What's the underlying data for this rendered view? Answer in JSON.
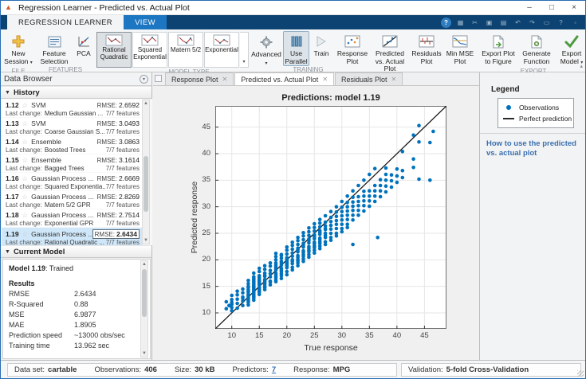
{
  "window": {
    "title": "Regression Learner - Predicted vs. Actual Plot",
    "controls": {
      "minimize": "–",
      "maximize": "□",
      "close": "×"
    }
  },
  "ribbon": {
    "tabs": [
      {
        "label": "REGRESSION LEARNER"
      },
      {
        "label": "VIEW"
      }
    ],
    "qab": [
      {
        "name": "help-circle-icon",
        "glyph": "?"
      },
      {
        "name": "save-icon",
        "glyph": "▦"
      },
      {
        "name": "cut-icon",
        "glyph": "✂"
      },
      {
        "name": "copy-icon",
        "glyph": "▣"
      },
      {
        "name": "paste-icon",
        "glyph": "▤"
      },
      {
        "name": "undo-icon",
        "glyph": "↶"
      },
      {
        "name": "redo-icon",
        "glyph": "↷"
      },
      {
        "name": "layout-icon",
        "glyph": "▭"
      },
      {
        "name": "help-icon",
        "glyph": "?"
      },
      {
        "name": "dock-icon",
        "glyph": "◦"
      }
    ],
    "file": {
      "label": "FILE",
      "new_session": "New Session"
    },
    "features": {
      "label": "FEATURES",
      "feature_selection": "Feature Selection",
      "pca": "PCA"
    },
    "model_type": {
      "label": "MODEL TYPE",
      "items": [
        "Rational Quadratic",
        "Squared Exponential",
        "Matern 5/2",
        "Exponential"
      ],
      "selected": "Rational Quadratic",
      "advanced": "Advanced"
    },
    "training": {
      "label": "TRAINING",
      "use_parallel": "Use Parallel",
      "train": "Train"
    },
    "plots": {
      "label": "PLOTS",
      "items": [
        "Response Plot",
        "Predicted vs. Actual Plot",
        "Residuals Plot",
        "Min MSE Plot"
      ]
    },
    "export": {
      "label": "EXPORT",
      "items": [
        "Export Plot to Figure",
        "Generate Function",
        "Export Model"
      ]
    }
  },
  "data_browser": {
    "title": "Data Browser",
    "history": {
      "label": "History",
      "rmse_label": "RMSE:",
      "last_change_label": "Last change:",
      "rows": [
        {
          "id": "1.12",
          "type": "SVM",
          "rmse": "2.6592",
          "last_change": "Medium Gaussian ...",
          "features": "7/7 features",
          "selected": false
        },
        {
          "id": "1.13",
          "type": "SVM",
          "rmse": "3.0493",
          "last_change": "Coarse Gaussian S...",
          "features": "7/7 features",
          "selected": false
        },
        {
          "id": "1.14",
          "type": "Ensemble",
          "rmse": "3.0863",
          "last_change": "Boosted Trees",
          "features": "7/7 features",
          "selected": false
        },
        {
          "id": "1.15",
          "type": "Ensemble",
          "rmse": "3.1614",
          "last_change": "Bagged Trees",
          "features": "7/7 features",
          "selected": false
        },
        {
          "id": "1.16",
          "type": "Gaussian Process ...",
          "rmse": "2.6669",
          "last_change": "Squared Exponentia...",
          "features": "7/7 features",
          "selected": false
        },
        {
          "id": "1.17",
          "type": "Gaussian Process ...",
          "rmse": "2.8269",
          "last_change": "Matern 5/2 GPR",
          "features": "7/7 features",
          "selected": false
        },
        {
          "id": "1.18",
          "type": "Gaussian Process ...",
          "rmse": "2.7514",
          "last_change": "Exponential GPR",
          "features": "7/7 features",
          "selected": false
        },
        {
          "id": "1.19",
          "type": "Gaussian Process ...",
          "rmse": "2.6434",
          "last_change": "Rational Quadratic ...",
          "features": "7/7 features",
          "selected": true
        }
      ]
    },
    "current_model": {
      "label": "Current Model",
      "model_name": "Model 1.19",
      "model_status": ": Trained",
      "results_label": "Results",
      "stats": [
        [
          "RMSE",
          "2.6434"
        ],
        [
          "R-Squared",
          "0.88"
        ],
        [
          "MSE",
          "6.9877"
        ],
        [
          "MAE",
          "1.8905"
        ],
        [
          "Prediction speed",
          "~13000 obs/sec"
        ],
        [
          "Training time",
          "13.962 sec"
        ]
      ]
    }
  },
  "doc_tabs": [
    {
      "label": "Response Plot",
      "active": false
    },
    {
      "label": "Predicted vs. Actual Plot",
      "active": true
    },
    {
      "label": "Residuals Plot",
      "active": false
    }
  ],
  "chart_data": {
    "type": "scatter",
    "title": "Predictions: model 1.19",
    "xlabel": "True response",
    "ylabel": "Predicted response",
    "xlim": [
      7,
      49
    ],
    "ylim": [
      7,
      49
    ],
    "ticks": [
      10,
      15,
      20,
      25,
      30,
      35,
      40,
      45
    ],
    "grid": true,
    "legend_position": "right-panel",
    "series": [
      {
        "name": "Observations",
        "marker": "dot",
        "marker_color": "#0072BD",
        "columns": [
          [
            9,
            [
              12.1,
              10.8
            ]
          ],
          [
            9.5,
            [
              11.4
            ]
          ],
          [
            10,
            [
              10.4,
              11.6,
              12.5,
              13.3,
              11.0,
              12.0
            ]
          ],
          [
            11,
            [
              11.8,
              12.6,
              13.4,
              10.9,
              14.1
            ]
          ],
          [
            12,
            [
              12.2,
              13.0,
              13.8,
              11.4,
              14.5,
              12.7
            ]
          ],
          [
            13,
            [
              12.0,
              12.6,
              13.2,
              13.9,
              14.4,
              15.0,
              11.5,
              12.9,
              13.5,
              14.8,
              15.5,
              16.1,
              12.3,
              14.1
            ]
          ],
          [
            14,
            [
              12.8,
              13.3,
              13.9,
              14.4,
              15.0,
              15.6,
              16.2,
              12.4,
              13.6,
              14.8,
              15.3,
              16.8,
              17.5,
              13.1,
              14.1,
              15.9,
              16.5,
              14.6
            ]
          ],
          [
            15,
            [
              13.5,
              14.2,
              14.8,
              15.3,
              15.9,
              16.4,
              17.0,
              13.9,
              15.6,
              16.7,
              17.8,
              18.4,
              14.5,
              16.1
            ]
          ],
          [
            16,
            [
              14.4,
              15.0,
              15.7,
              16.3,
              16.9,
              17.5,
              14.8,
              16.0,
              17.1,
              18.2,
              15.4,
              18.9
            ]
          ],
          [
            17,
            [
              15.3,
              16.0,
              16.8,
              17.4,
              18.0,
              18.8,
              15.8,
              19.4
            ]
          ],
          [
            18,
            [
              16.2,
              16.9,
              17.5,
              18.1,
              18.7,
              19.4,
              20.0,
              15.9,
              17.2,
              18.4,
              19.0,
              20.6,
              16.6,
              21.2
            ]
          ],
          [
            19,
            [
              17.0,
              17.8,
              18.4,
              19.0,
              19.7,
              20.3,
              16.5,
              18.1,
              19.4,
              21.0,
              17.4,
              20.8
            ]
          ],
          [
            20,
            [
              17.8,
              18.5,
              19.2,
              19.8,
              20.4,
              21.1,
              17.2,
              18.9,
              20.1,
              21.8,
              22.4,
              19.5
            ]
          ],
          [
            21,
            [
              18.6,
              19.3,
              20.0,
              20.7,
              21.3,
              22.0,
              18.1,
              19.7,
              22.7,
              23.3
            ]
          ],
          [
            22,
            [
              19.4,
              20.1,
              20.8,
              21.5,
              22.2,
              22.9,
              18.9,
              20.5,
              21.9,
              23.6,
              24.2,
              19.8
            ]
          ],
          [
            23,
            [
              20.2,
              21.0,
              21.7,
              22.4,
              23.1,
              23.8,
              19.7,
              21.4,
              22.8,
              24.5,
              25.1,
              20.7
            ]
          ],
          [
            24,
            [
              21.0,
              21.8,
              22.5,
              23.2,
              23.9,
              24.6,
              20.5,
              22.2,
              23.6,
              25.3,
              26.0,
              21.5
            ]
          ],
          [
            25,
            [
              21.8,
              22.6,
              23.3,
              24.0,
              24.7,
              25.4,
              21.3,
              23.0,
              24.4,
              26.1,
              26.8,
              22.3
            ]
          ],
          [
            26,
            [
              22.6,
              23.4,
              24.1,
              24.8,
              25.5,
              26.2,
              22.1,
              23.8,
              25.2,
              26.9,
              27.6,
              23.1
            ]
          ],
          [
            27,
            [
              23.4,
              24.2,
              25.0,
              25.7,
              26.4,
              27.1,
              22.9,
              24.6,
              28.3,
              25.9
            ]
          ],
          [
            28,
            [
              24.2,
              25.0,
              25.8,
              26.5,
              27.2,
              28.0,
              23.7,
              29.1
            ]
          ],
          [
            29,
            [
              25.0,
              25.9,
              26.7,
              27.4,
              28.2,
              29.0,
              24.5,
              30.0
            ]
          ],
          [
            30,
            [
              25.9,
              26.7,
              27.5,
              28.3,
              29.1,
              29.9,
              25.3,
              31.0
            ]
          ],
          [
            31,
            [
              26.7,
              27.6,
              28.4,
              29.2,
              30.0,
              30.8,
              26.1,
              32.0
            ]
          ],
          [
            32,
            [
              27.5,
              28.4,
              29.3,
              30.1,
              30.9,
              31.8,
              22.9,
              33.0
            ]
          ],
          [
            33,
            [
              28.4,
              29.3,
              30.2,
              31.0,
              31.9,
              34.0
            ]
          ],
          [
            34,
            [
              29.2,
              30.2,
              31.1,
              32.0,
              32.9,
              35.0
            ]
          ],
          [
            35,
            [
              30.1,
              31.1,
              32.0,
              33.0,
              36.1
            ]
          ],
          [
            36,
            [
              31.0,
              32.0,
              33.0,
              34.0,
              37.2
            ]
          ],
          [
            36.5,
            [
              24.2
            ]
          ],
          [
            37,
            [
              31.9,
              33.0,
              34.0,
              35.1
            ]
          ],
          [
            38,
            [
              32.8,
              33.9,
              35.0,
              36.1,
              37.3
            ]
          ],
          [
            39,
            [
              33.7,
              34.9,
              36.0
            ]
          ],
          [
            40,
            [
              34.6,
              35.8,
              37.1
            ]
          ],
          [
            41,
            [
              35.5,
              36.8,
              40.4
            ]
          ],
          [
            43,
            [
              37.4,
              39.0,
              43.5
            ]
          ],
          [
            44,
            [
              35.2,
              42.2,
              45.3
            ]
          ],
          [
            46,
            [
              35.0,
              42.1
            ]
          ],
          [
            46.6,
            [
              44.2
            ]
          ]
        ]
      },
      {
        "name": "Perfect prediction",
        "type": "line",
        "color": "#1a1a1a",
        "from": [
          7,
          7
        ],
        "to": [
          49,
          49
        ]
      }
    ]
  },
  "right_panel": {
    "legend_title": "Legend",
    "help_link": "How to use the predicted vs. actual plot"
  },
  "status_bar": {
    "left": [
      {
        "label": "Data set:",
        "value": "cartable",
        "link": false
      },
      {
        "label": "Observations:",
        "value": "406",
        "link": false
      },
      {
        "label": "Size:",
        "value": "30 kB",
        "link": false
      },
      {
        "label": "Predictors:",
        "value": "7",
        "link": true
      },
      {
        "label": "Response:",
        "value": "MPG",
        "link": false
      }
    ],
    "right": {
      "label": "Validation:",
      "value": "5-fold Cross-Validation"
    }
  }
}
